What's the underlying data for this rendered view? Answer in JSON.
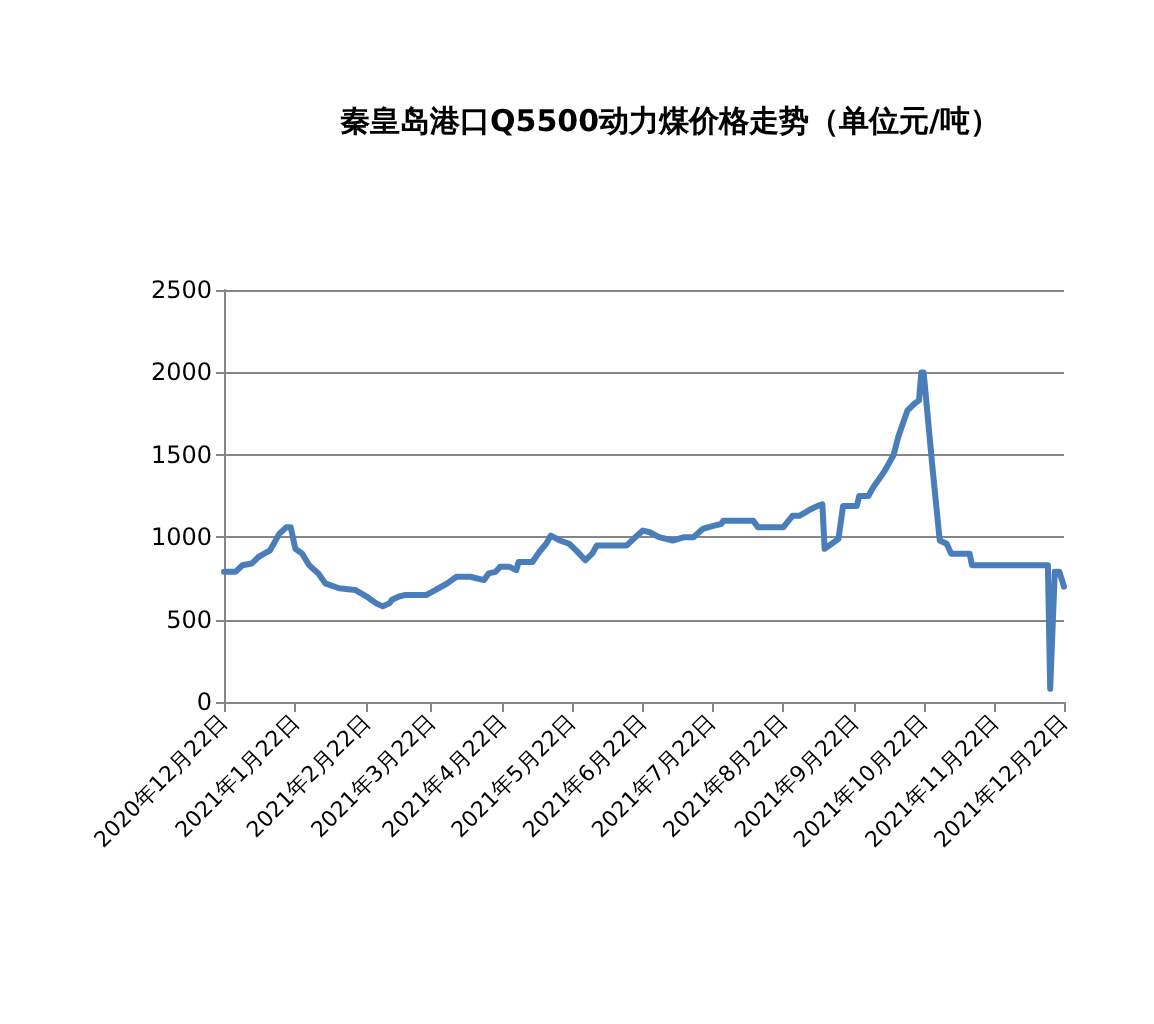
{
  "chart_data": {
    "type": "line",
    "title": "秦皇岛港口Q5500动力煤价格走势（单位元/吨）",
    "x": [
      "2020-12-22",
      "2020-12-27",
      "2020-12-30",
      "2021-01-03",
      "2021-01-06",
      "2021-01-11",
      "2021-01-15",
      "2021-01-18",
      "2021-01-20",
      "2021-01-22",
      "2021-01-25",
      "2021-01-28",
      "2021-02-01",
      "2021-02-04",
      "2021-02-10",
      "2021-02-17",
      "2021-02-22",
      "2021-02-26",
      "2021-03-01",
      "2021-03-04",
      "2021-03-05",
      "2021-03-08",
      "2021-03-11",
      "2021-03-20",
      "2021-03-24",
      "2021-03-29",
      "2021-04-02",
      "2021-04-08",
      "2021-04-14",
      "2021-04-16",
      "2021-04-19",
      "2021-04-21",
      "2021-04-25",
      "2021-04-28",
      "2021-04-29",
      "2021-05-05",
      "2021-05-08",
      "2021-05-11",
      "2021-05-13",
      "2021-05-17",
      "2021-05-21",
      "2021-05-24",
      "2021-05-28",
      "2021-05-31",
      "2021-06-02",
      "2021-06-09",
      "2021-06-15",
      "2021-06-18",
      "2021-06-22",
      "2021-06-25",
      "2021-06-29",
      "2021-07-05",
      "2021-07-10",
      "2021-07-14",
      "2021-07-18",
      "2021-07-23",
      "2021-07-26",
      "2021-07-27",
      "2021-08-09",
      "2021-08-11",
      "2021-08-18",
      "2021-08-22",
      "2021-08-26",
      "2021-08-29",
      "2021-09-03",
      "2021-09-06",
      "2021-09-08",
      "2021-09-09",
      "2021-09-15",
      "2021-09-17",
      "2021-09-23",
      "2021-09-24",
      "2021-09-28",
      "2021-09-30",
      "2021-10-05",
      "2021-10-09",
      "2021-10-11",
      "2021-10-15",
      "2021-10-18",
      "2021-10-20",
      "2021-10-21",
      "2021-10-22",
      "2021-10-26",
      "2021-10-29",
      "2021-11-01",
      "2021-11-03",
      "2021-11-11",
      "2021-11-12",
      "2021-12-15",
      "2021-12-16",
      "2021-12-18",
      "2021-12-20",
      "2021-12-22"
    ],
    "series": [
      {
        "color": "#4a7ebb",
        "values": [
          790,
          790,
          830,
          840,
          880,
          920,
          1020,
          1060,
          1060,
          930,
          900,
          830,
          780,
          720,
          690,
          680,
          640,
          600,
          580,
          600,
          620,
          640,
          650,
          650,
          680,
          720,
          760,
          760,
          740,
          780,
          790,
          820,
          820,
          800,
          850,
          850,
          910,
          960,
          1010,
          980,
          960,
          920,
          860,
          900,
          950,
          950,
          950,
          990,
          1040,
          1030,
          1000,
          980,
          1000,
          1000,
          1050,
          1070,
          1080,
          1100,
          1100,
          1060,
          1060,
          1060,
          1130,
          1130,
          1170,
          1190,
          1200,
          930,
          990,
          1190,
          1190,
          1250,
          1250,
          1300,
          1400,
          1500,
          1610,
          1770,
          1810,
          1830,
          2000,
          2000,
          1400,
          980,
          960,
          900,
          900,
          830,
          830,
          80,
          790,
          790,
          700
        ]
      }
    ],
    "xlim": [
      "2020-12-22",
      "2021-12-22"
    ],
    "xticks": [
      {
        "value": "2020-12-22",
        "label": "2020年12月22日"
      },
      {
        "value": "2021-01-22",
        "label": "2021年1月22日"
      },
      {
        "value": "2021-02-22",
        "label": "2021年2月22日"
      },
      {
        "value": "2021-03-22",
        "label": "2021年3月22日"
      },
      {
        "value": "2021-04-22",
        "label": "2021年4月22日"
      },
      {
        "value": "2021-05-22",
        "label": "2021年5月22日"
      },
      {
        "value": "2021-06-22",
        "label": "2021年6月22日"
      },
      {
        "value": "2021-07-22",
        "label": "2021年7月22日"
      },
      {
        "value": "2021-08-22",
        "label": "2021年8月22日"
      },
      {
        "value": "2021-09-22",
        "label": "2021年9月22日"
      },
      {
        "value": "2021-10-22",
        "label": "2021年10月22日"
      },
      {
        "value": "2021-11-22",
        "label": "2021年11月22日"
      },
      {
        "value": "2021-12-22",
        "label": "2021年12月22日"
      }
    ],
    "ylim": [
      0,
      2500
    ],
    "yticks": [
      0,
      500,
      1000,
      1500,
      2000,
      2500
    ],
    "grid": "y",
    "marker": "none",
    "line_style": "solid"
  }
}
